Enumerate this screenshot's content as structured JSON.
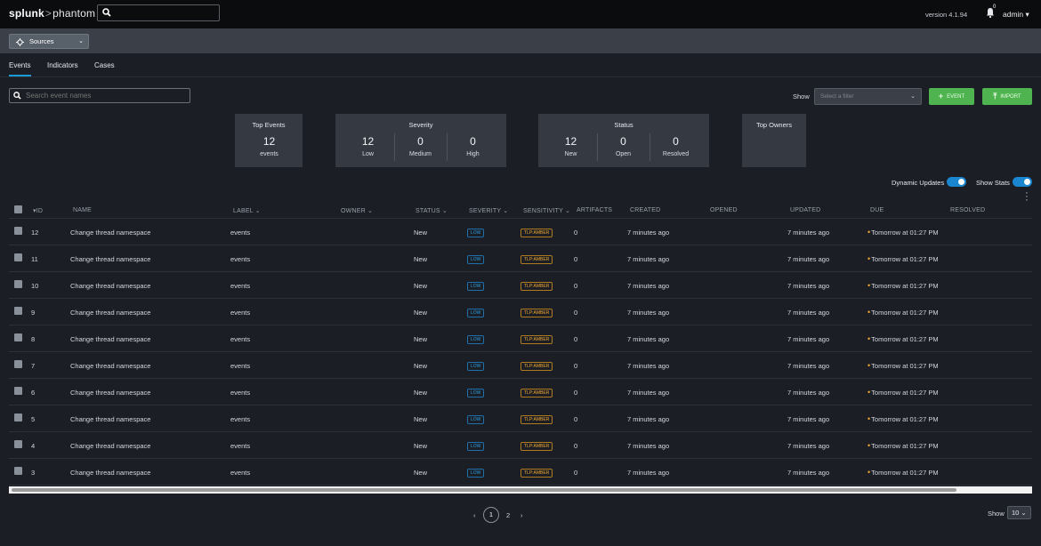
{
  "topbar": {
    "logo_brand": "splunk",
    "logo_sep": ">",
    "logo_product": "phantom",
    "version": "version 4.1.94",
    "notification_count": "0",
    "user": "admin ▾"
  },
  "sources": {
    "label": "Sources"
  },
  "tabs": [
    "Events",
    "Indicators",
    "Cases"
  ],
  "search": {
    "placeholder": "Search event names"
  },
  "filter": {
    "show_label": "Show",
    "placeholder": "Select a filter"
  },
  "buttons": {
    "event": "EVENT",
    "import": "IMPORT"
  },
  "stats": {
    "top_events": {
      "title": "Top Events",
      "value": "12",
      "label": "events"
    },
    "severity": {
      "title": "Severity",
      "items": [
        {
          "value": "12",
          "label": "Low"
        },
        {
          "value": "0",
          "label": "Medium"
        },
        {
          "value": "0",
          "label": "High"
        }
      ]
    },
    "status": {
      "title": "Status",
      "items": [
        {
          "value": "12",
          "label": "New"
        },
        {
          "value": "0",
          "label": "Open"
        },
        {
          "value": "0",
          "label": "Resolved"
        }
      ]
    },
    "top_owners": {
      "title": "Top Owners"
    }
  },
  "toggles": {
    "dynamic_updates": "Dynamic Updates",
    "show_stats": "Show Stats"
  },
  "table": {
    "headers": [
      "ID",
      "NAME",
      "LABEL",
      "OWNER",
      "STATUS",
      "SEVERITY",
      "SENSITIVITY",
      "ARTIFACTS",
      "CREATED",
      "OPENED",
      "UPDATED",
      "DUE",
      "RESOLVED"
    ],
    "rows": [
      {
        "id": "12",
        "name": "Change thread namespace",
        "label": "events",
        "status": "New",
        "severity": "LOW",
        "sensitivity": "TLP:AMBER",
        "artifacts": "0",
        "created": "7 minutes ago",
        "updated": "7 minutes ago",
        "due": "Tomorrow at 01:27 PM"
      },
      {
        "id": "11",
        "name": "Change thread namespace",
        "label": "events",
        "status": "New",
        "severity": "LOW",
        "sensitivity": "TLP:AMBER",
        "artifacts": "0",
        "created": "7 minutes ago",
        "updated": "7 minutes ago",
        "due": "Tomorrow at 01:27 PM"
      },
      {
        "id": "10",
        "name": "Change thread namespace",
        "label": "events",
        "status": "New",
        "severity": "LOW",
        "sensitivity": "TLP:AMBER",
        "artifacts": "0",
        "created": "7 minutes ago",
        "updated": "7 minutes ago",
        "due": "Tomorrow at 01:27 PM"
      },
      {
        "id": "9",
        "name": "Change thread namespace",
        "label": "events",
        "status": "New",
        "severity": "LOW",
        "sensitivity": "TLP:AMBER",
        "artifacts": "0",
        "created": "7 minutes ago",
        "updated": "7 minutes ago",
        "due": "Tomorrow at 01:27 PM"
      },
      {
        "id": "8",
        "name": "Change thread namespace",
        "label": "events",
        "status": "New",
        "severity": "LOW",
        "sensitivity": "TLP:AMBER",
        "artifacts": "0",
        "created": "7 minutes ago",
        "updated": "7 minutes ago",
        "due": "Tomorrow at 01:27 PM"
      },
      {
        "id": "7",
        "name": "Change thread namespace",
        "label": "events",
        "status": "New",
        "severity": "LOW",
        "sensitivity": "TLP:AMBER",
        "artifacts": "0",
        "created": "7 minutes ago",
        "updated": "7 minutes ago",
        "due": "Tomorrow at 01:27 PM"
      },
      {
        "id": "6",
        "name": "Change thread namespace",
        "label": "events",
        "status": "New",
        "severity": "LOW",
        "sensitivity": "TLP:AMBER",
        "artifacts": "0",
        "created": "7 minutes ago",
        "updated": "7 minutes ago",
        "due": "Tomorrow at 01:27 PM"
      },
      {
        "id": "5",
        "name": "Change thread namespace",
        "label": "events",
        "status": "New",
        "severity": "LOW",
        "sensitivity": "TLP:AMBER",
        "artifacts": "0",
        "created": "7 minutes ago",
        "updated": "7 minutes ago",
        "due": "Tomorrow at 01:27 PM"
      },
      {
        "id": "4",
        "name": "Change thread namespace",
        "label": "events",
        "status": "New",
        "severity": "LOW",
        "sensitivity": "TLP:AMBER",
        "artifacts": "0",
        "created": "7 minutes ago",
        "updated": "7 minutes ago",
        "due": "Tomorrow at 01:27 PM"
      },
      {
        "id": "3",
        "name": "Change thread namespace",
        "label": "events",
        "status": "New",
        "severity": "LOW",
        "sensitivity": "TLP:AMBER",
        "artifacts": "0",
        "created": "7 minutes ago",
        "updated": "7 minutes ago",
        "due": "Tomorrow at 01:27 PM"
      }
    ]
  },
  "pagination": {
    "prev": "‹",
    "current": "1",
    "next_page": "2",
    "next": "›",
    "show_label": "Show",
    "page_size": "10"
  },
  "colors": {
    "accent": "#1a9bd7",
    "success": "#4fb44f",
    "low": "#2aa0e6",
    "amber": "#f0a830",
    "background": "#1b1e24"
  }
}
